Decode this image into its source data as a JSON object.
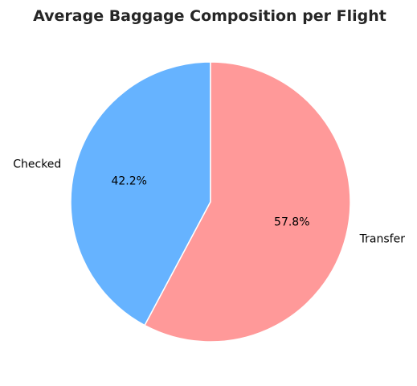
{
  "chart_data": {
    "type": "pie",
    "title": "Average Baggage Composition per Flight",
    "categories": [
      "Checked",
      "Transfer"
    ],
    "values": [
      42.2,
      57.8
    ],
    "value_labels": [
      "42.2%",
      "57.8%"
    ],
    "colors": [
      "#66b3ff",
      "#ff9999"
    ],
    "start_angle_deg": 90,
    "direction": "counterclockwise",
    "edge_color": "#ffffff",
    "legend": "none"
  }
}
